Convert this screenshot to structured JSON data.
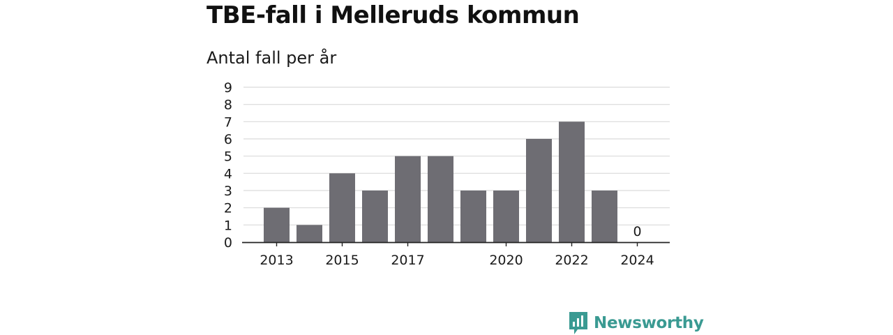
{
  "title": "TBE-fall i Melleruds kommun",
  "subtitle": "Antal fall per år",
  "colors": {
    "bar": "#6e6d73",
    "grid": "#d9d9d9",
    "axis": "#222222",
    "text": "#1a1a1a",
    "brand": "#3a9a92"
  },
  "chart_data": {
    "type": "bar",
    "title": "TBE-fall i Melleruds kommun",
    "subtitle": "Antal fall per år",
    "xlabel": "",
    "ylabel": "",
    "categories": [
      "2013",
      "2014",
      "2015",
      "2016",
      "2017",
      "2018",
      "2019",
      "2020",
      "2021",
      "2022",
      "2023",
      "2024"
    ],
    "x_tick_labels": [
      "2013",
      "2015",
      "2017",
      "2020",
      "2022",
      "2024"
    ],
    "values": [
      2,
      1,
      4,
      3,
      5,
      5,
      3,
      3,
      6,
      7,
      3,
      0
    ],
    "data_labels": [
      {
        "category": "2024",
        "text": "0"
      }
    ],
    "ylim": [
      0,
      9
    ],
    "yticks": [
      0,
      1,
      2,
      3,
      4,
      5,
      6,
      7,
      8,
      9
    ],
    "grid": true,
    "legend": "none"
  },
  "brand": {
    "name": "Newsworthy",
    "icon": "newsworthy-logo-icon"
  }
}
